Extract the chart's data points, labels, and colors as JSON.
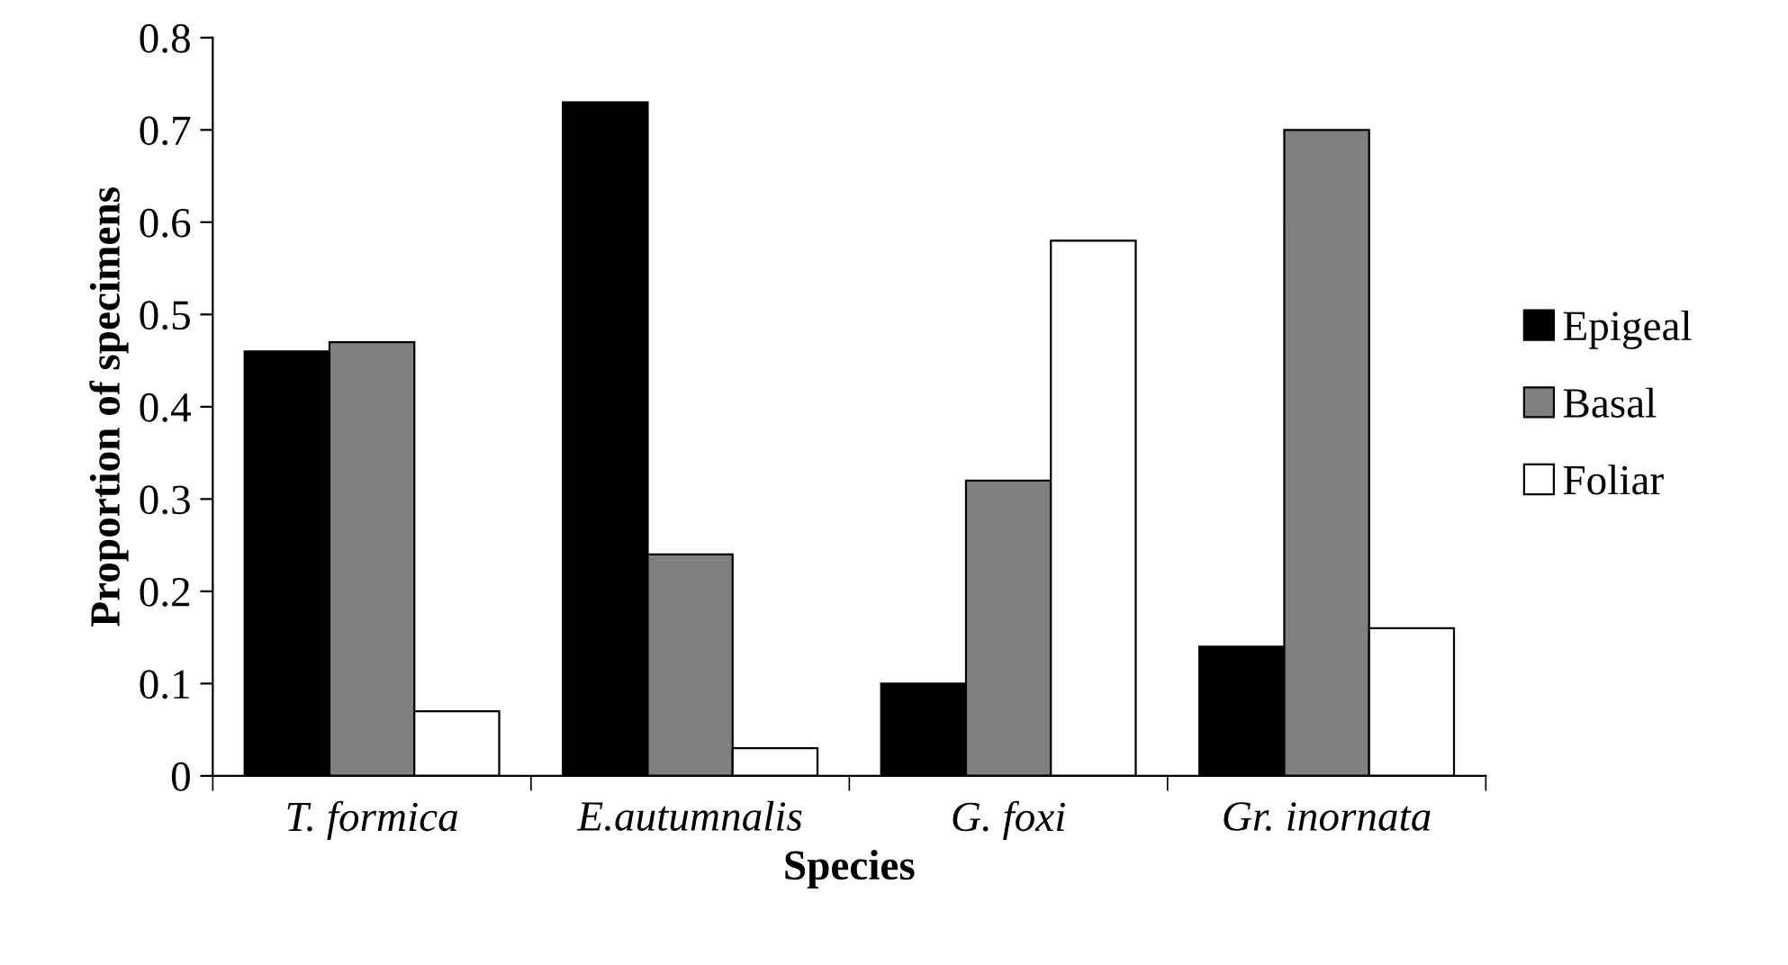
{
  "chart_data": {
    "type": "bar",
    "xlabel": "Species",
    "ylabel": "Proportion of specimens",
    "categories": [
      "T. formica",
      "E.autumnalis",
      "G. foxi",
      "Gr. inornata"
    ],
    "series": [
      {
        "name": "Epigeal",
        "color": "#000000",
        "values": [
          0.46,
          0.73,
          0.1,
          0.14
        ]
      },
      {
        "name": "Basal",
        "color": "#808080",
        "values": [
          0.47,
          0.24,
          0.32,
          0.7
        ]
      },
      {
        "name": "Foliar",
        "color": "#ffffff",
        "values": [
          0.07,
          0.03,
          0.58,
          0.16
        ]
      }
    ],
    "ylim": [
      0,
      0.8
    ],
    "yticks": [
      0,
      0.1,
      0.2,
      0.3,
      0.4,
      0.5,
      0.6,
      0.7,
      0.8
    ],
    "grid": false,
    "legend": "right"
  }
}
